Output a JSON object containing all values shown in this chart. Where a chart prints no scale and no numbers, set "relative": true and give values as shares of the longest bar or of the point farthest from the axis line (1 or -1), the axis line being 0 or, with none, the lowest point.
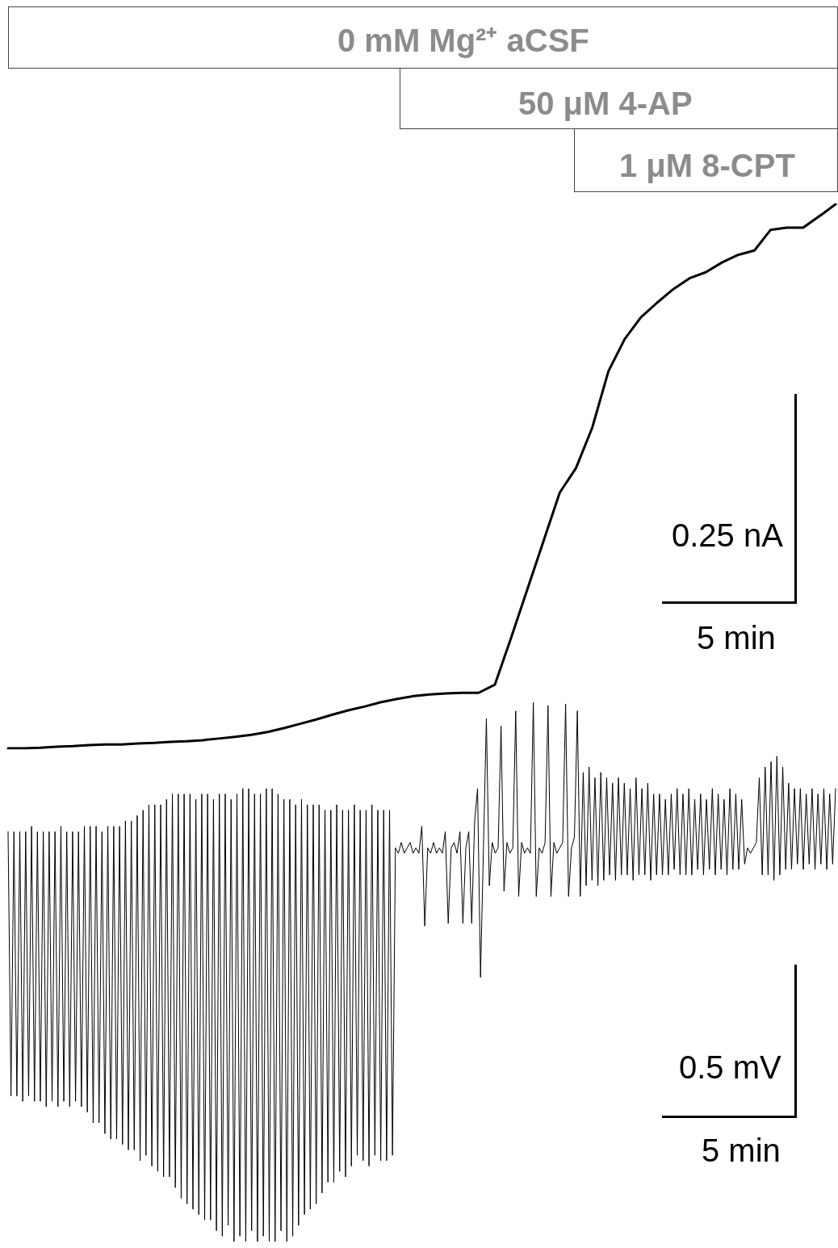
{
  "chart_data": [
    {
      "type": "line",
      "relative": true,
      "marker": "none",
      "line_style": "solid",
      "annotations": [
        "0 mM Mg²⁺ aCSF",
        "50 μM 4-AP",
        "1 μM 8-CPT",
        "0.25 nA",
        "5 min"
      ],
      "categories": [
        null,
        null,
        null,
        null,
        null,
        null,
        null,
        null,
        null,
        null,
        null,
        null,
        null,
        null,
        null,
        null,
        null,
        null,
        null,
        null,
        null,
        null,
        null,
        null,
        null,
        null,
        null,
        null,
        null,
        null,
        null,
        null,
        null,
        null,
        null,
        null,
        null,
        null,
        null,
        null,
        null,
        null,
        null,
        null,
        null,
        null,
        null,
        null,
        null,
        null,
        null,
        null
      ],
      "series": [
        {
          "color": "#000000",
          "values": [
            0,
            0,
            0.001,
            0.003,
            0.004,
            0.006,
            0.007,
            0.007,
            0.009,
            0.01,
            0.012,
            0.013,
            0.015,
            0.018,
            0.021,
            0.025,
            0.03,
            0.037,
            0.045,
            0.053,
            0.062,
            0.07,
            0.077,
            0.085,
            0.091,
            0.096,
            0.099,
            0.101,
            0.102,
            0.102,
            0.117,
            0.203,
            0.292,
            0.381,
            0.47,
            0.515,
            0.589,
            0.693,
            0.752,
            0.792,
            0.819,
            0.844,
            0.864,
            0.875,
            0.893,
            0.907,
            0.915,
            0.953,
            0.957,
            0.957,
            0.978,
            1
          ]
        }
      ]
    },
    {
      "type": "line",
      "relative": true,
      "marker": "none",
      "line_style": "solid",
      "annotations": [
        "0.5 mV",
        "5 min"
      ],
      "categories": [
        null,
        null,
        null,
        null,
        null,
        null,
        null,
        null,
        null,
        null,
        null,
        null,
        null,
        null,
        null,
        null,
        null,
        null,
        null,
        null,
        null,
        null,
        null,
        null,
        null,
        null,
        null,
        null,
        null,
        null,
        null,
        null,
        null,
        null,
        null,
        null,
        null,
        null,
        null,
        null,
        null,
        null,
        null,
        null,
        null,
        null,
        null,
        null,
        null,
        null,
        null,
        null,
        null,
        null,
        null,
        null,
        null,
        null,
        null,
        null,
        null,
        null,
        null,
        null,
        null,
        null,
        null,
        null,
        null,
        null,
        null,
        null,
        null,
        null,
        null,
        null,
        null,
        null,
        null,
        null,
        null,
        null,
        null,
        null,
        null,
        null,
        null,
        null,
        null,
        null,
        null,
        null,
        null,
        null,
        null,
        null,
        null,
        null,
        null,
        null,
        null,
        null,
        null,
        null,
        null,
        null,
        null,
        null,
        null,
        null,
        null,
        null,
        null,
        null,
        null,
        null,
        null,
        null,
        null,
        null,
        null,
        null,
        null,
        null,
        null,
        null,
        null,
        null,
        null,
        null,
        null,
        null,
        null,
        null,
        null,
        null,
        null,
        null,
        null,
        null,
        null,
        null,
        null,
        null,
        null,
        null,
        null,
        null,
        null,
        null,
        null,
        null,
        null,
        null,
        null,
        null,
        null,
        null,
        null,
        null,
        null,
        null,
        null,
        null,
        null,
        null,
        null,
        null,
        null,
        null,
        null,
        null,
        null,
        null,
        null,
        null,
        null,
        null,
        null,
        null,
        null,
        null,
        null,
        null,
        null,
        null,
        null,
        null,
        null,
        null,
        null,
        null,
        null,
        null,
        null,
        null,
        null,
        null,
        null,
        null,
        null,
        null,
        null,
        null,
        null,
        null,
        null,
        null,
        null,
        null,
        null,
        null,
        null,
        null,
        null,
        null,
        null,
        null,
        null,
        null,
        null,
        null,
        null,
        null,
        null,
        null,
        null,
        null,
        null,
        null,
        null,
        null,
        null,
        null,
        null,
        null,
        null,
        null,
        null,
        null,
        null,
        null,
        null,
        null,
        null,
        null,
        null,
        null,
        null,
        null,
        null,
        null,
        null,
        null,
        null,
        null,
        null,
        null,
        null,
        null,
        null,
        null,
        null,
        null,
        null,
        null,
        null,
        null,
        null,
        null,
        null,
        null,
        null,
        null,
        null,
        null,
        null,
        null,
        null,
        null,
        null,
        null,
        null
      ],
      "series": [
        {
          "color": "#000000",
          "values": [
            0.76,
            0.27,
            0.76,
            0.27,
            0.76,
            0.26,
            0.76,
            0.27,
            0.77,
            0.26,
            0.76,
            0.26,
            0.76,
            0.25,
            0.76,
            0.26,
            0.76,
            0.25,
            0.77,
            0.26,
            0.76,
            0.25,
            0.76,
            0.26,
            0.76,
            0.25,
            0.77,
            0.24,
            0.77,
            0.22,
            0.77,
            0.22,
            0.76,
            0.2,
            0.77,
            0.19,
            0.77,
            0.19,
            0.77,
            0.18,
            0.78,
            0.17,
            0.78,
            0.17,
            0.79,
            0.15,
            0.8,
            0.16,
            0.81,
            0.14,
            0.81,
            0.13,
            0.81,
            0.12,
            0.82,
            0.12,
            0.83,
            0.1,
            0.83,
            0.08,
            0.83,
            0.07,
            0.83,
            0.06,
            0.82,
            0.05,
            0.83,
            0.04,
            0.83,
            0.04,
            0.82,
            0.02,
            0.83,
            0.01,
            0.83,
            0.03,
            0.82,
            0,
            0.83,
            0.01,
            0.84,
            0,
            0.84,
            0.02,
            0.83,
            0,
            0.83,
            0.01,
            0.84,
            0,
            0.84,
            0,
            0.83,
            0.02,
            0.82,
            0,
            0.82,
            0.01,
            0.81,
            0.03,
            0.82,
            0.05,
            0.81,
            0.06,
            0.81,
            0.07,
            0.81,
            0.09,
            0.8,
            0.11,
            0.8,
            0.11,
            0.81,
            0.13,
            0.8,
            0.12,
            0.8,
            0.14,
            0.81,
            0.16,
            0.8,
            0.15,
            0.8,
            0.14,
            0.81,
            0.16,
            0.8,
            0.15,
            0.8,
            0.15,
            0.8,
            0.16,
            0.73,
            0.72,
            0.74,
            0.72,
            0.73,
            0.74,
            0.72,
            0.73,
            0.72,
            0.77,
            0.585,
            0.73,
            0.72,
            0.74,
            0.72,
            0.73,
            0.72,
            0.76,
            0.59,
            0.73,
            0.74,
            0.72,
            0.76,
            0.59,
            0.73,
            0.76,
            0.59,
            0.78,
            0.84,
            0.49,
            0.73,
            0.97,
            0.66,
            0.74,
            0.72,
            0.73,
            0.956,
            0.65,
            0.74,
            0.72,
            0.73,
            0.984,
            0.64,
            0.74,
            0.72,
            0.73,
            0.72,
            1,
            0.64,
            0.73,
            0.72,
            0.74,
            0.994,
            0.64,
            0.74,
            0.72,
            0.73,
            0.74,
            0.997,
            0.64,
            0.73,
            0.75,
            0.984,
            0.64,
            0.87,
            0.66,
            0.88,
            0.67,
            0.86,
            0.66,
            0.87,
            0.67,
            0.86,
            0.68,
            0.85,
            0.67,
            0.86,
            0.68,
            0.85,
            0.68,
            0.84,
            0.67,
            0.86,
            0.68,
            0.84,
            0.68,
            0.85,
            0.67,
            0.83,
            0.68,
            0.83,
            0.68,
            0.82,
            0.68,
            0.83,
            0.69,
            0.84,
            0.68,
            0.83,
            0.68,
            0.84,
            0.68,
            0.82,
            0.69,
            0.83,
            0.68,
            0.82,
            0.69,
            0.84,
            0.68,
            0.83,
            0.69,
            0.82,
            0.68,
            0.84,
            0.69,
            0.83,
            0.69,
            0.82,
            0.7,
            0.73,
            0.72,
            0.73,
            0.74,
            0.86,
            0.68,
            0.88,
            0.68,
            0.89,
            0.67,
            0.9,
            0.68,
            0.88,
            0.69,
            0.85,
            0.69,
            0.84,
            0.7,
            0.84,
            0.69,
            0.83,
            0.7,
            0.84,
            0.69,
            0.83,
            0.7,
            0.84,
            0.69,
            0.83,
            0.7,
            0.84
          ]
        }
      ]
    }
  ]
}
